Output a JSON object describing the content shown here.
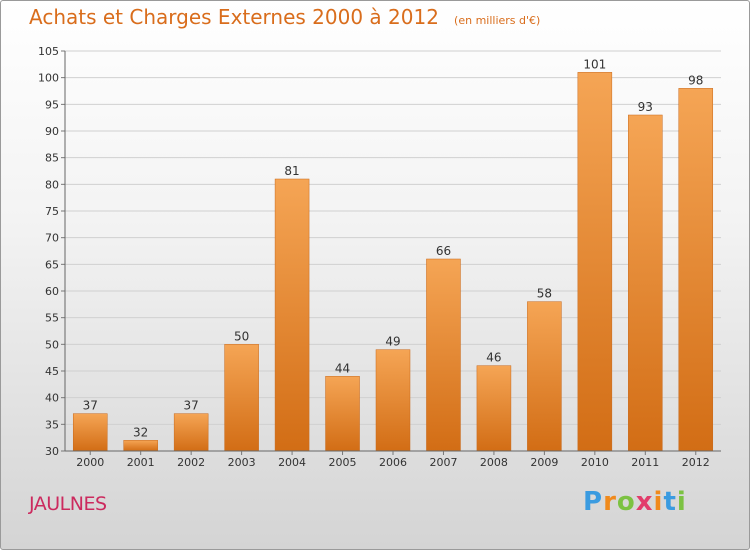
{
  "header": {
    "title": "Achats et Charges Externes 2000 à 2012",
    "subtitle": "(en milliers d'€)"
  },
  "footer": {
    "place": "JAULNES",
    "logo": "Proxiti"
  },
  "colors": {
    "title": "#d96d1c",
    "place": "#cc2a5e",
    "bar_top": "#f5a555",
    "bar_bottom": "#d26d15"
  },
  "chart_data": {
    "type": "bar",
    "title": "Achats et Charges Externes 2000 à 2012",
    "subtitle": "(en milliers d'€)",
    "categories": [
      "2000",
      "2001",
      "2002",
      "2003",
      "2004",
      "2005",
      "2006",
      "2007",
      "2008",
      "2009",
      "2010",
      "2011",
      "2012"
    ],
    "values": [
      37,
      32,
      37,
      50,
      81,
      44,
      49,
      66,
      46,
      58,
      101,
      93,
      98
    ],
    "data_labels": [
      "37",
      "32",
      "37",
      "50",
      "81",
      "44",
      "49",
      "66",
      "46",
      "58",
      "101",
      "93",
      "98"
    ],
    "xlabel": "",
    "ylabel": "",
    "ylim": [
      30,
      105
    ],
    "yticks": [
      30,
      35,
      40,
      45,
      50,
      55,
      60,
      65,
      70,
      75,
      80,
      85,
      90,
      95,
      100,
      105
    ],
    "grid": true
  }
}
